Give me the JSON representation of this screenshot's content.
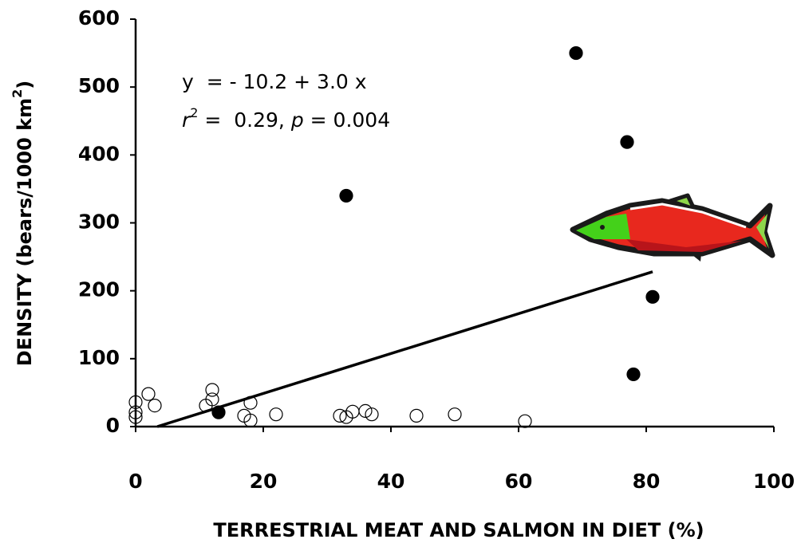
{
  "chart_data": {
    "type": "scatter",
    "x_label": "TERRESTRIAL MEAT AND SALMON IN DIET (%)",
    "y_label": [
      "DENSITY (bears/1000 km",
      "2",
      ")"
    ],
    "annotation_1": "y  = - 10.2 + 3.0 x",
    "annotation_2": [
      "r",
      "2",
      " =  0.29, ",
      "p",
      " = 0.004"
    ],
    "xlim": [
      0,
      100
    ],
    "xticks": [
      0,
      20,
      40,
      60,
      80,
      100
    ],
    "ylim": [
      0,
      600
    ],
    "yticks": [
      0,
      100,
      200,
      300,
      400,
      500,
      600
    ],
    "series": [
      {
        "marker": "open",
        "color": "#000000",
        "x": [
          0,
          0,
          0,
          2,
          3,
          12,
          12,
          11,
          18,
          17,
          18,
          22,
          32,
          33,
          34,
          36,
          37,
          44,
          50,
          61
        ],
        "values": [
          36,
          21,
          14,
          48,
          31,
          54,
          40,
          31,
          35,
          16,
          9,
          18,
          16,
          14,
          22,
          23,
          18,
          16,
          18,
          8
        ]
      },
      {
        "marker": "filled",
        "color": "#000000",
        "x": [
          13,
          33,
          69,
          77,
          81,
          78
        ],
        "values": [
          21,
          340,
          550,
          419,
          191,
          77
        ]
      }
    ],
    "trend_line": {
      "color": "#000000",
      "x": [
        3.4,
        81
      ],
      "values": [
        0,
        228
      ]
    }
  }
}
